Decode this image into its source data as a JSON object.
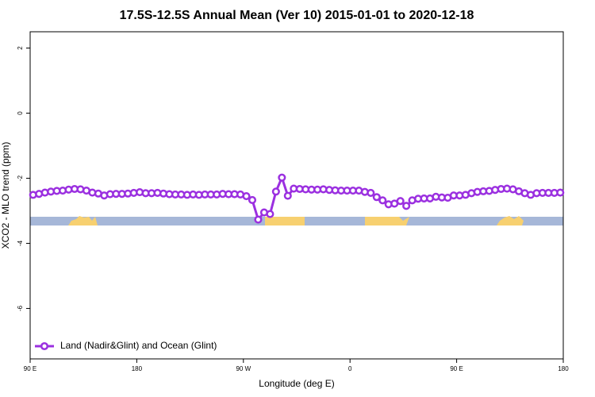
{
  "chart_data": {
    "type": "line",
    "title": "17.5S-12.5S Annual Mean (Ver 10)   2015-01-01 to 2020-12-18",
    "x_label": "Longitude (deg E)",
    "y_label": "XCO2 - MLO trend (ppm)",
    "xlim": [
      90,
      540
    ],
    "xticks": [
      {
        "value": 90,
        "label": "90 E"
      },
      180,
      {
        "value": 270,
        "label": "90 W"
      },
      {
        "value": 360,
        "label": "0"
      },
      {
        "value": 450,
        "label": "90 E"
      },
      {
        "value": 540,
        "label": "180"
      }
    ],
    "ylim": [
      -7.55,
      2.5
    ],
    "yticks": [
      2,
      0,
      -2,
      -4,
      -6
    ],
    "legend": "bottom-left",
    "x": [
      92.5,
      97.5,
      102.5,
      107.5,
      112.5,
      117.5,
      122.5,
      127.5,
      132.5,
      137.5,
      142.5,
      147.5,
      152.5,
      157.5,
      162.5,
      167.5,
      172.5,
      177.5,
      182.5,
      187.5,
      192.5,
      197.5,
      202.5,
      207.5,
      212.5,
      217.5,
      222.5,
      227.5,
      232.5,
      237.5,
      242.5,
      247.5,
      252.5,
      257.5,
      262.5,
      267.5,
      272.5,
      277.5,
      282.5,
      287.5,
      292.5,
      297.5,
      302.5,
      307.5,
      312.5,
      317.5,
      322.5,
      327.5,
      332.5,
      337.5,
      342.5,
      347.5,
      352.5,
      357.5,
      362.5,
      367.5,
      372.5,
      377.5,
      382.5,
      387.5,
      392.5,
      397.5,
      402.5,
      407.5,
      412.5,
      417.5,
      422.5,
      427.5,
      432.5,
      437.5,
      442.5,
      447.5,
      452.5,
      457.5,
      462.5,
      467.5,
      472.5,
      477.5,
      482.5,
      487.5,
      492.5,
      497.5,
      502.5,
      507.5,
      512.5,
      517.5,
      522.5,
      527.5,
      532.5,
      537.5
    ],
    "series": [
      {
        "name": "Land (Nadir&Glint) and Ocean (Glint)",
        "color": "#9b30e0",
        "values": [
          -2.51,
          -2.48,
          -2.44,
          -2.41,
          -2.39,
          -2.38,
          -2.35,
          -2.33,
          -2.34,
          -2.38,
          -2.44,
          -2.47,
          -2.53,
          -2.49,
          -2.48,
          -2.48,
          -2.47,
          -2.45,
          -2.43,
          -2.46,
          -2.46,
          -2.45,
          -2.47,
          -2.49,
          -2.5,
          -2.5,
          -2.51,
          -2.5,
          -2.51,
          -2.5,
          -2.5,
          -2.5,
          -2.48,
          -2.49,
          -2.49,
          -2.5,
          -2.55,
          -2.67,
          -3.27,
          -3.05,
          -3.1,
          -2.41,
          -1.98,
          -2.54,
          -2.32,
          -2.33,
          -2.34,
          -2.35,
          -2.35,
          -2.34,
          -2.36,
          -2.37,
          -2.38,
          -2.38,
          -2.38,
          -2.38,
          -2.42,
          -2.45,
          -2.58,
          -2.68,
          -2.8,
          -2.78,
          -2.7,
          -2.85,
          -2.68,
          -2.63,
          -2.62,
          -2.62,
          -2.57,
          -2.59,
          -2.6,
          -2.53,
          -2.53,
          -2.51,
          -2.46,
          -2.42,
          -2.4,
          -2.39,
          -2.36,
          -2.33,
          -2.32,
          -2.34,
          -2.4,
          -2.46,
          -2.51,
          -2.46,
          -2.45,
          -2.45,
          -2.45,
          -2.44
        ]
      }
    ]
  }
}
